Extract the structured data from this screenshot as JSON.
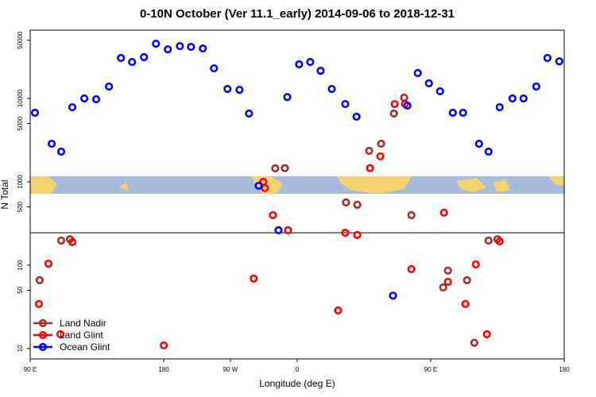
{
  "chart_data": {
    "type": "scatter",
    "title": "0-10N October (Ver 11.1_early)   2014-09-06 to 2018-12-31",
    "x_label": "Longitude (deg E)",
    "y_label": "N Total",
    "log_y": true,
    "legend": "lower left",
    "hline": 245,
    "xlim": [
      90,
      450
    ],
    "xticks": [
      {
        "value": 90,
        "label": "90 E"
      },
      180,
      {
        "value": 225,
        "label": "90 W"
      },
      {
        "value": 270,
        "label": "0"
      },
      {
        "value": 360,
        "label": "90 E"
      },
      {
        "value": 450,
        "label": "180"
      }
    ],
    "ylim": [
      7.5,
      66000
    ],
    "yticks": [
      10,
      50,
      100,
      500,
      1000,
      5000,
      10000,
      50000
    ],
    "series": [
      {
        "name": "Land Nadir",
        "color": "#a52a2a",
        "x": [
          96.4,
          110.9,
          116.8,
          255.2,
          261.7,
          302.9,
          310.5,
          318.5,
          326.6,
          335.2,
          342.1,
          347.0,
          368.4,
          371.6,
          384.5,
          389.4,
          399.0,
          405.0
        ],
        "values": [
          66,
          197,
          205,
          1450,
          1460,
          565,
          530,
          2350,
          2860,
          6590,
          10230,
          398,
          54,
          86,
          66,
          11.7,
          197,
          205
        ]
      },
      {
        "name": "Land Glint",
        "color": "#ff0000",
        "x": [
          95.9,
          102.3,
          110.4,
          118.4,
          180.1,
          240.7,
          247.2,
          248.2,
          253.6,
          263.8,
          297.6,
          302.4,
          310.5,
          319.1,
          326.1,
          335.7,
          342.7,
          347.0,
          369.0,
          371.6,
          383.4,
          390.4,
          397.9,
          406.5
        ],
        "values": [
          34.2,
          104,
          14.8,
          189,
          10.9,
          68.9,
          1000,
          840,
          398,
          262,
          28.6,
          245,
          230,
          1460,
          2020,
          8570,
          8570,
          89.6,
          426,
          63,
          34.2,
          102,
          14.8,
          193
        ]
      },
      {
        "name": "Ocean Glint",
        "color": "#0000ff",
        "x": [
          93.2,
          104.5,
          110.9,
          118.4,
          126.5,
          134.5,
          143.1,
          151.2,
          158.7,
          166.7,
          174.8,
          182.8,
          190.9,
          198.4,
          206.4,
          213.9,
          223.0,
          231.1,
          237.5,
          244.0,
          257.4,
          263.3,
          271.3,
          278.8,
          285.8,
          293.3,
          302.4,
          310.0,
          334.6,
          344.3,
          351.3,
          358.8,
          366.3,
          374.9,
          381.8,
          392.6,
          399.0,
          406.5,
          415.1,
          422.6,
          431.2,
          438.7,
          446.7
        ],
        "values": [
          6740,
          2860,
          2300,
          7850,
          10000,
          9780,
          13900,
          30600,
          27400,
          31300,
          45400,
          38900,
          42500,
          41600,
          39800,
          23000,
          13000,
          12700,
          6590,
          895,
          262,
          10400,
          25700,
          27400,
          21500,
          13000,
          8570,
          6040,
          43,
          8200,
          20200,
          15200,
          12200,
          6740,
          6740,
          2860,
          2300,
          7850,
          10000,
          10000,
          13900,
          30600,
          27900
        ]
      }
    ]
  }
}
